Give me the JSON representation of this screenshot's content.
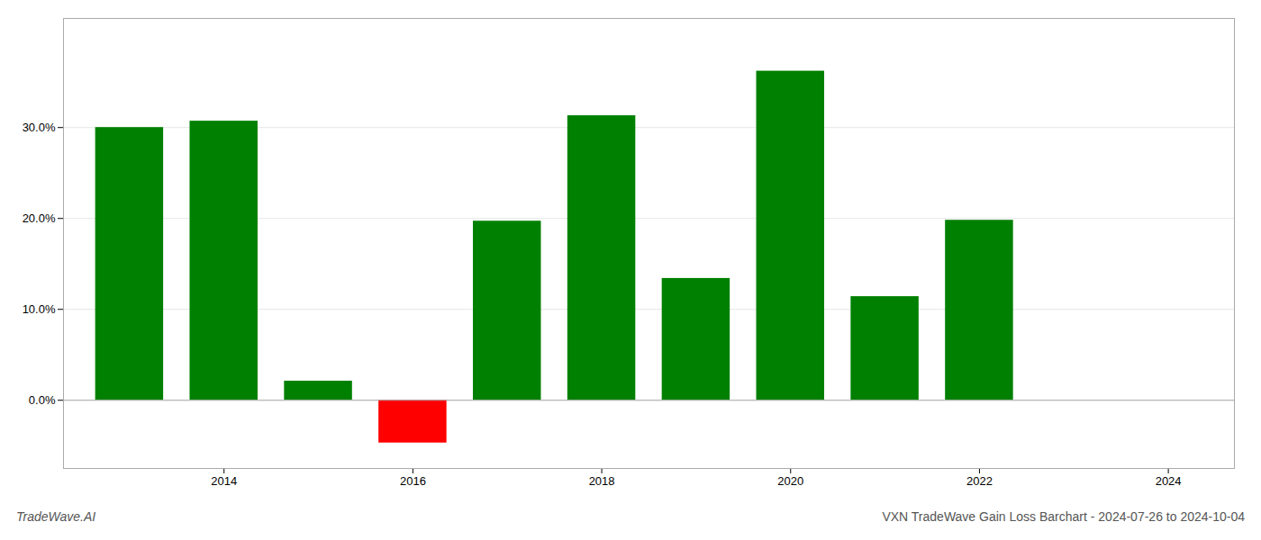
{
  "chart_data": {
    "type": "bar",
    "title": "VXN TradeWave Gain Loss Barchart - 2024-07-26 to 2024-10-04",
    "annotations": [
      "TradeWave.AI"
    ],
    "x": [
      2013,
      2014,
      2015,
      2016,
      2017,
      2018,
      2019,
      2020,
      2021,
      2022,
      2023
    ],
    "values": [
      0.3,
      0.307,
      0.021,
      -0.047,
      0.197,
      0.313,
      0.134,
      0.362,
      0.114,
      0.198,
      null
    ],
    "colors": [
      "#008000",
      "#008000",
      "#008000",
      "#ff0000",
      "#008000",
      "#008000",
      "#008000",
      "#008000",
      "#008000",
      "#008000",
      null
    ],
    "xlim": [
      2012.3,
      2024.7
    ],
    "xticks": [
      2014,
      2016,
      2018,
      2020,
      2022,
      2024
    ],
    "ylim": [
      -0.075,
      0.42
    ],
    "yticks": [
      {
        "value": 0.0,
        "label": "0.0%"
      },
      {
        "value": 0.1,
        "label": "10.0%"
      },
      {
        "value": 0.2,
        "label": "20.0%"
      },
      {
        "value": 0.3,
        "label": "30.0%"
      }
    ],
    "grid": true
  }
}
